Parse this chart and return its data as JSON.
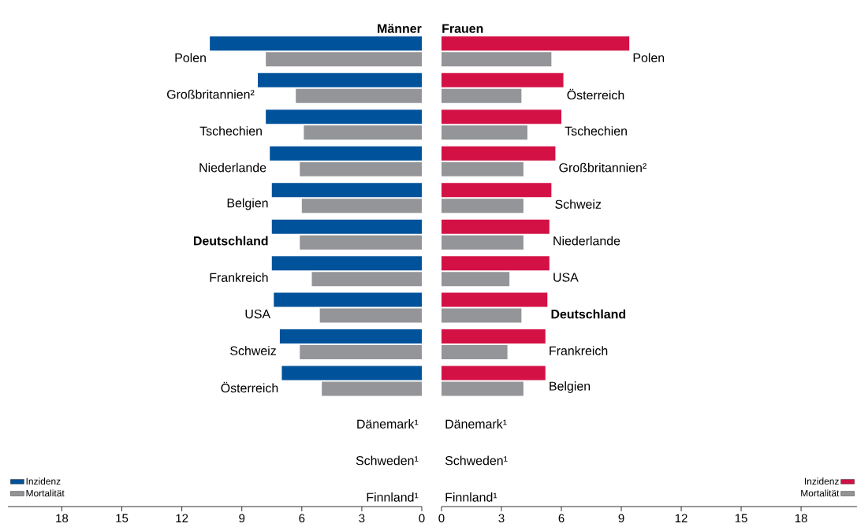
{
  "chart_data": [
    {
      "type": "bar",
      "orientation": "horizontal",
      "title": "Männer",
      "categories": [
        "Polen",
        "Großbritannien²",
        "Tschechien",
        "Niederlande",
        "Belgien",
        "**Deutschland**",
        "Frankreich",
        "USA",
        "Schweiz",
        "Österreich",
        "Dänemark¹",
        "Schweden¹",
        "Finnland¹"
      ],
      "series": [
        {
          "name": "Inzidenz",
          "color": "#00529b",
          "values": [
            10.6,
            8.2,
            7.8,
            7.6,
            7.5,
            7.5,
            7.5,
            7.4,
            7.1,
            7.0,
            null,
            null,
            null
          ]
        },
        {
          "name": "Mortalität",
          "color": "#939598",
          "values": [
            7.8,
            6.3,
            5.9,
            6.1,
            6.0,
            6.1,
            5.5,
            5.1,
            6.1,
            5.0,
            null,
            null,
            null
          ]
        }
      ],
      "xlim": [
        20.7,
        0
      ],
      "xticks": [
        18,
        15,
        12,
        9,
        6,
        3,
        0
      ],
      "legend": "bottom left"
    },
    {
      "type": "bar",
      "orientation": "horizontal",
      "title": "Frauen",
      "categories": [
        "Polen",
        "Österreich",
        "Tschechien",
        "Großbritannien²",
        "Schweiz",
        "Niederlande",
        "USA",
        "**Deutschland**",
        "Frankreich",
        "Belgien",
        "Dänemark¹",
        "Schweden¹",
        "Finnland¹"
      ],
      "series": [
        {
          "name": "Inzidenz",
          "color": "#d31145",
          "values": [
            9.4,
            6.1,
            6.0,
            5.7,
            5.5,
            5.4,
            5.4,
            5.3,
            5.2,
            5.2,
            null,
            null,
            null
          ]
        },
        {
          "name": "Mortalität",
          "color": "#939598",
          "values": [
            5.5,
            4.0,
            4.3,
            4.1,
            4.1,
            4.1,
            3.4,
            4.0,
            3.3,
            4.1,
            null,
            null,
            null
          ]
        }
      ],
      "xlim": [
        0,
        20.8
      ],
      "xticks": [
        0,
        3,
        6,
        9,
        12,
        15,
        18
      ],
      "legend": "bottom right"
    }
  ]
}
